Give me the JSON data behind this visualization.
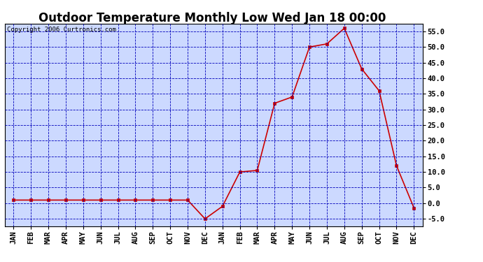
{
  "title": "Outdoor Temperature Monthly Low Wed Jan 18 00:00",
  "copyright": "Copyright 2006 Curtronics.com",
  "categories": [
    "JAN",
    "FEB",
    "MAR",
    "APR",
    "MAY",
    "JUN",
    "JUL",
    "AUG",
    "SEP",
    "OCT",
    "NOV",
    "DEC",
    "JAN",
    "FEB",
    "MAR",
    "APR",
    "MAY",
    "JUN",
    "JUL",
    "AUG",
    "SEP",
    "OCT",
    "NOV",
    "DEC"
  ],
  "values": [
    1.0,
    1.0,
    1.0,
    1.0,
    1.0,
    1.0,
    1.0,
    1.0,
    1.0,
    1.0,
    1.0,
    -5.0,
    -1.0,
    10.0,
    10.5,
    32.0,
    34.0,
    50.0,
    51.0,
    56.0,
    43.0,
    36.0,
    12.0,
    -1.5
  ],
  "ylim": [
    -7.5,
    57.5
  ],
  "yticks": [
    -5.0,
    0.0,
    5.0,
    10.0,
    15.0,
    20.0,
    25.0,
    30.0,
    35.0,
    40.0,
    45.0,
    50.0,
    55.0
  ],
  "line_color": "#cc0000",
  "marker_color": "#cc0000",
  "bg_color": "#ccd9ff",
  "grid_color": "#0000bb",
  "title_fontsize": 12,
  "tick_fontsize": 7.5,
  "copyright_fontsize": 6.5
}
